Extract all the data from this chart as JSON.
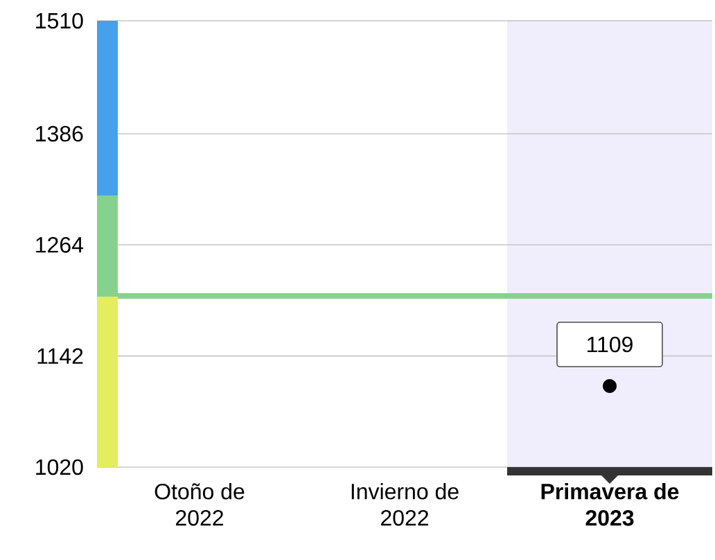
{
  "chart_data": {
    "type": "scatter",
    "categories": [
      "Otoño de 2022",
      "Invierno de 2022",
      "Primavera de 2023"
    ],
    "series": [
      {
        "color": "#000000",
        "values": [
          null,
          null,
          1109
        ],
        "value_labels": [
          null,
          null,
          "1109"
        ]
      }
    ],
    "marker": "circle",
    "ylim": [
      1020,
      1510
    ],
    "yticks": [
      1020,
      1142,
      1264,
      1386,
      1510
    ],
    "grid": "y",
    "ref_lines": [
      {
        "axis": "y",
        "value": 1208,
        "color": "#86d28d"
      }
    ],
    "bands": [
      {
        "axis": "x",
        "from": "Primavera de 2023",
        "to": "Primavera de 2023",
        "color": "#f0eefc"
      }
    ]
  }
}
